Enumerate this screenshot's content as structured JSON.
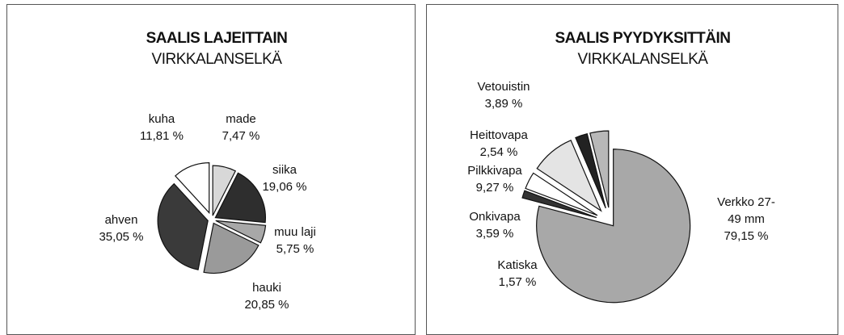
{
  "chart_data": [
    {
      "type": "pie",
      "title": "SAALIS LAJEITTAIN",
      "subtitle": "VIRKKALANSELKÄ",
      "categories": [
        "made",
        "siika",
        "muu laji",
        "hauki",
        "ahven",
        "kuha"
      ],
      "values": [
        7.47,
        19.06,
        5.75,
        20.85,
        35.05,
        11.81
      ],
      "value_labels": [
        "7,47 %",
        "19,06 %",
        "5,75 %",
        "20,85 %",
        "35,05 %",
        "11,81 %"
      ],
      "colors": [
        "#d8d8d8",
        "#2e2e2e",
        "#a8a8a8",
        "#9a9a9a",
        "#3a3a3a",
        "#ffffff"
      ]
    },
    {
      "type": "pie",
      "title": "SAALIS PYYDYKSITTÄIN",
      "subtitle": "VIRKKALANSELKÄ",
      "categories": [
        "Verkko 27-49 mm",
        "Katiska",
        "Onkivapa",
        "Pilkkivapa",
        "Heittovapa",
        "Vetouistin"
      ],
      "values": [
        79.15,
        1.57,
        3.59,
        9.27,
        2.54,
        3.89
      ],
      "value_labels": [
        "79,15 %",
        "1,57 %",
        "3,59 %",
        "9,27 %",
        "2,54 %",
        "3,89 %"
      ],
      "colors": [
        "#a8a8a8",
        "#333333",
        "#ffffff",
        "#e4e4e4",
        "#222222",
        "#b8b8b8"
      ]
    }
  ]
}
